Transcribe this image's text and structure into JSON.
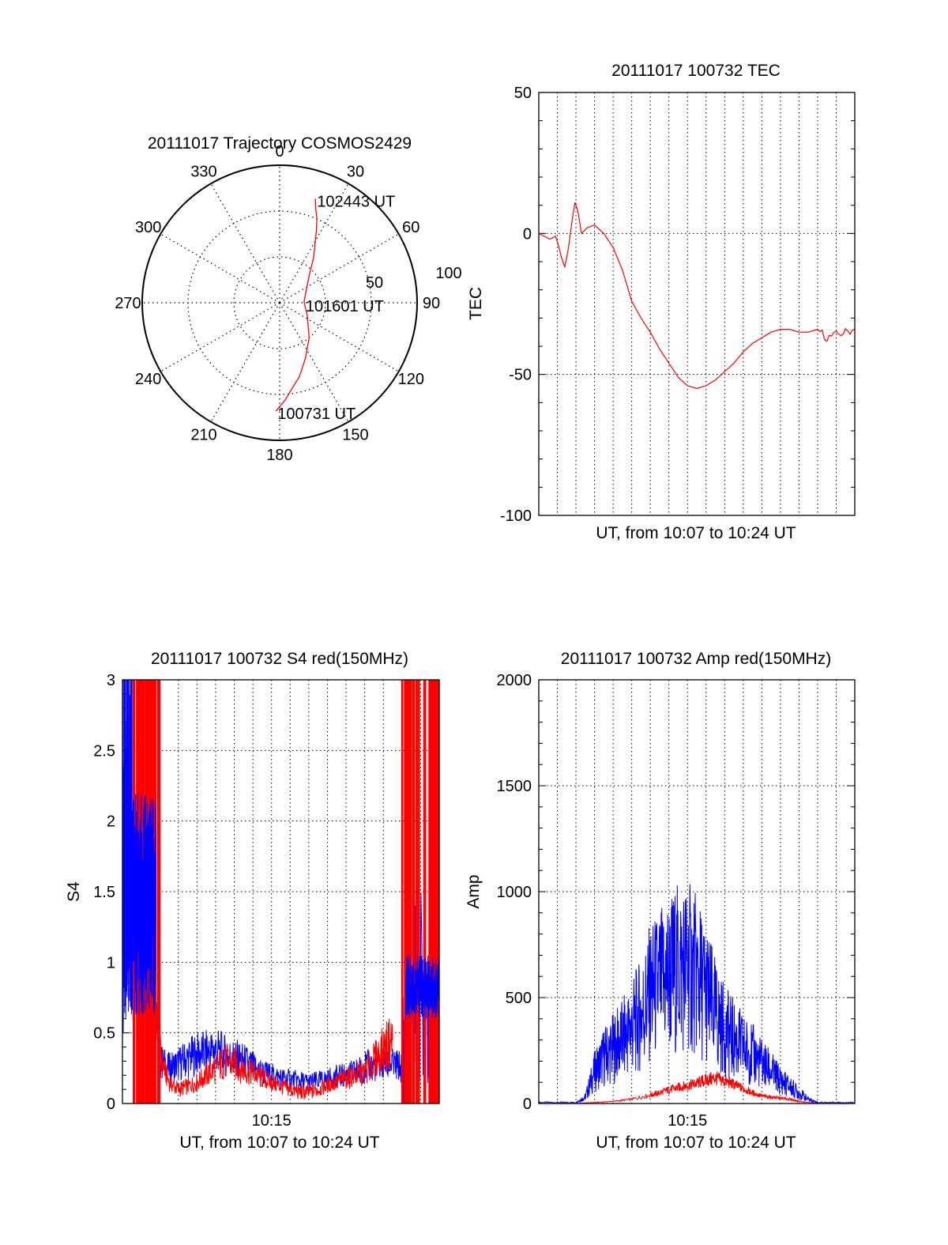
{
  "chart_data": [
    {
      "type": "polar",
      "title": "20111017 Trajectory COSMOS2429",
      "azimuth_labels": [
        "0",
        "30",
        "60",
        "90",
        "120",
        "150",
        "180",
        "210",
        "240",
        "270",
        "300",
        "330"
      ],
      "radial_labels": [
        "50",
        "100"
      ],
      "series": [
        {
          "color": "#ff0000",
          "points_az_el": [
            [
              182,
              19
            ],
            [
              177,
              26
            ],
            [
              172,
              33
            ],
            [
              165,
              40
            ],
            [
              155,
              50
            ],
            [
              140,
              60
            ],
            [
              115,
              70
            ],
            [
              88,
              74
            ],
            [
              62,
              70
            ],
            [
              45,
              62
            ],
            [
              37,
              53
            ],
            [
              31,
              45
            ],
            [
              27,
              37
            ],
            [
              24,
              30
            ],
            [
              21,
              24
            ],
            [
              19,
              18
            ]
          ]
        }
      ],
      "annotations": [
        {
          "text": "102443 UT",
          "az": 19,
          "el": 18
        },
        {
          "text": "101601 UT",
          "az": 92,
          "el": 74
        },
        {
          "text": "100731 UT",
          "az": 182,
          "el": 19
        }
      ]
    },
    {
      "type": "line",
      "title": "20111017 100732 TEC",
      "xlabel": "UT, from 10:07 to 10:24 UT",
      "ylabel": "TEC",
      "ylim": [
        -100,
        50
      ],
      "yticks": [
        "50",
        "0",
        "-50",
        "-100"
      ],
      "xlim": [
        0,
        17
      ],
      "grid": true,
      "series": [
        {
          "color": "#ff0000",
          "x": [
            0,
            0.3,
            0.6,
            0.9,
            1.05,
            1.2,
            1.4,
            1.6,
            1.8,
            1.95,
            2.1,
            2.3,
            2.6,
            3.0,
            3.5,
            4.0,
            4.5,
            5.0,
            5.5,
            6.0,
            6.5,
            7.0,
            7.5,
            8.0,
            8.5,
            9.0,
            9.5,
            10.0,
            10.5,
            11.0,
            11.5,
            12.0,
            12.5,
            13.0,
            13.5,
            14.0,
            14.5,
            15.0,
            15.5,
            16.0,
            16.5,
            17.0
          ],
          "y": [
            0,
            -1,
            -2,
            -1,
            -4,
            -8,
            -12,
            -5,
            5,
            11,
            8,
            0,
            2,
            3,
            0,
            -5,
            -13,
            -24,
            -30,
            -35,
            -41,
            -46,
            -51,
            -54,
            -55,
            -54,
            -52,
            -49,
            -46,
            -42,
            -39,
            -37,
            -35,
            -34,
            -34,
            -35,
            -35,
            -34,
            -37,
            -36,
            -35,
            -34
          ]
        }
      ]
    },
    {
      "type": "line",
      "title": "20111017 100732 S4 red(150MHz)",
      "xlabel": "UT, from 10:07 to 10:24 UT",
      "xticks": [
        "10:15"
      ],
      "ylabel": "S4",
      "ylim": [
        0,
        3
      ],
      "yticks": [
        "0",
        "0.5",
        "1",
        "1.5",
        "2",
        "2.5",
        "3"
      ],
      "xlim": [
        0,
        17
      ],
      "grid": true,
      "series": [
        {
          "color": "#0000ff",
          "x": [
            0,
            0.5,
            1.0,
            1.5,
            2.0,
            2.5,
            3.0,
            3.5,
            4.0,
            4.5,
            5.0,
            5.5,
            6.0,
            6.5,
            7.0,
            7.5,
            8.0,
            8.5,
            9.0,
            9.5,
            10.0,
            10.5,
            11.0,
            11.5,
            12.0,
            12.5,
            13.0,
            13.5,
            14.0,
            14.5,
            15.0,
            15.5,
            16.0,
            16.5,
            17.0
          ],
          "y": [
            1.1,
            1.3,
            1.2,
            1.0,
            0.3,
            0.25,
            0.28,
            0.32,
            0.35,
            0.36,
            0.38,
            0.34,
            0.32,
            0.3,
            0.26,
            0.22,
            0.2,
            0.18,
            0.17,
            0.16,
            0.15,
            0.16,
            0.17,
            0.19,
            0.2,
            0.22,
            0.26,
            0.27,
            0.28,
            0.27,
            0.26,
            0.8,
            0.85,
            0.82,
            0.8
          ]
        },
        {
          "color": "#ff0000",
          "x": [
            1.0,
            1.5,
            2.0,
            2.5,
            3.0,
            3.5,
            4.0,
            4.5,
            5.0,
            5.5,
            6.0,
            6.5,
            7.0,
            7.5,
            8.0,
            8.5,
            9.0,
            9.5,
            10.0,
            10.5,
            11.0,
            11.5,
            12.0,
            12.5,
            13.0,
            13.5,
            14.0,
            14.5
          ],
          "y": [
            1.4,
            1.0,
            0.35,
            0.15,
            0.1,
            0.12,
            0.15,
            0.2,
            0.25,
            0.3,
            0.28,
            0.24,
            0.22,
            0.18,
            0.15,
            0.12,
            0.1,
            0.08,
            0.08,
            0.1,
            0.13,
            0.15,
            0.18,
            0.2,
            0.22,
            0.3,
            0.38,
            0.45
          ]
        }
      ]
    },
    {
      "type": "line",
      "title": "20111017 100732 Amp red(150MHz)",
      "xlabel": "UT, from 10:07 to 10:24 UT",
      "xticks": [
        "10:15"
      ],
      "ylabel": "Amp",
      "ylim": [
        0,
        2000
      ],
      "yticks": [
        "0",
        "500",
        "1000",
        "1500",
        "2000"
      ],
      "xlim": [
        0,
        17
      ],
      "grid": true,
      "series": [
        {
          "color": "#0000ff",
          "x": [
            0,
            1.0,
            2.0,
            2.5,
            3.0,
            3.5,
            4.0,
            4.5,
            5.0,
            5.5,
            6.0,
            6.5,
            7.0,
            7.5,
            8.0,
            8.5,
            9.0,
            9.5,
            10.0,
            10.5,
            11.0,
            11.5,
            12.0,
            12.5,
            13.0,
            13.5,
            14.0,
            14.5,
            15.0,
            16.0,
            17.0
          ],
          "y": [
            5,
            5,
            5,
            30,
            150,
            220,
            260,
            300,
            360,
            420,
            520,
            560,
            600,
            640,
            650,
            600,
            520,
            420,
            340,
            300,
            260,
            230,
            190,
            150,
            110,
            80,
            50,
            20,
            5,
            5,
            5
          ]
        },
        {
          "color": "#ff0000",
          "x": [
            0,
            2.0,
            3.0,
            4.0,
            5.0,
            6.0,
            6.5,
            7.0,
            7.5,
            8.0,
            8.5,
            9.0,
            9.5,
            10.0,
            10.5,
            11.0,
            11.5,
            12.0,
            12.5,
            13.0,
            13.5,
            14.0,
            15.0,
            17.0
          ],
          "y": [
            0,
            0,
            5,
            10,
            20,
            40,
            50,
            65,
            75,
            85,
            95,
            110,
            120,
            105,
            90,
            70,
            50,
            35,
            30,
            25,
            20,
            10,
            0,
            0
          ]
        }
      ]
    }
  ]
}
